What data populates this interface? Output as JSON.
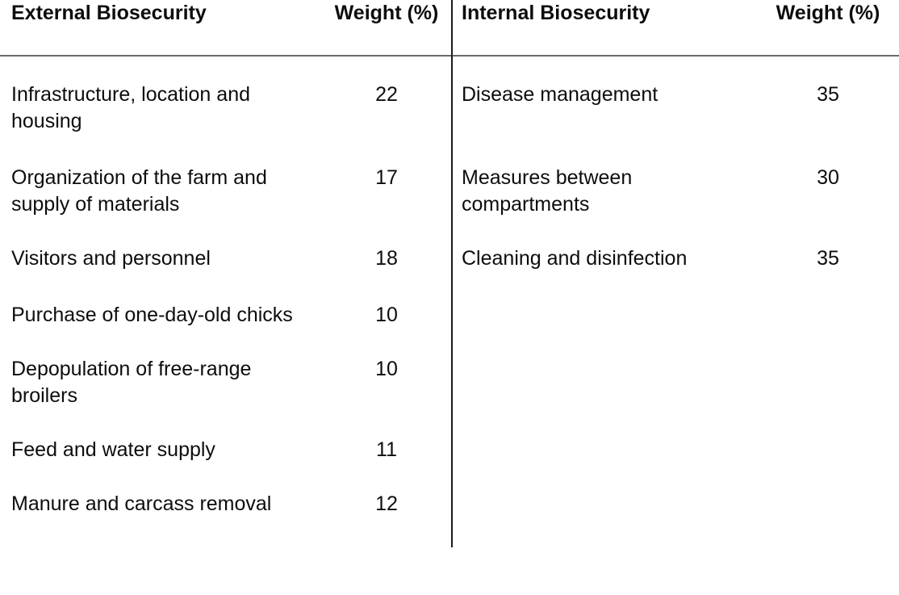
{
  "table": {
    "left": {
      "header": {
        "category": "External Biosecurity",
        "weight": "Weight (%)"
      },
      "rows": [
        {
          "label": "Infrastructure, location and\nhousing",
          "weight": "22"
        },
        {
          "label": "Organization of the farm and\nsupply of materials",
          "weight": "17"
        },
        {
          "label": "Visitors and personnel",
          "weight": "18"
        },
        {
          "label": "Purchase of one-day-old chicks",
          "weight": "10"
        },
        {
          "label": "Depopulation of free-range\nbroilers",
          "weight": "10"
        },
        {
          "label": "Feed and water supply",
          "weight": "11"
        },
        {
          "label": "Manure and carcass removal",
          "weight": "12"
        }
      ]
    },
    "right": {
      "header": {
        "category": "Internal Biosecurity",
        "weight": "Weight (%)"
      },
      "rows": [
        {
          "label": "Disease management",
          "weight": "35"
        },
        {
          "label": "Measures between\ncompartments",
          "weight": "30"
        },
        {
          "label": "Cleaning and disinfection",
          "weight": "35"
        }
      ]
    },
    "colors": {
      "background": "#ffffff",
      "text": "#0d0d0d",
      "header_rule": "#6a6a6a",
      "column_divider": "#1c1c1c"
    }
  }
}
